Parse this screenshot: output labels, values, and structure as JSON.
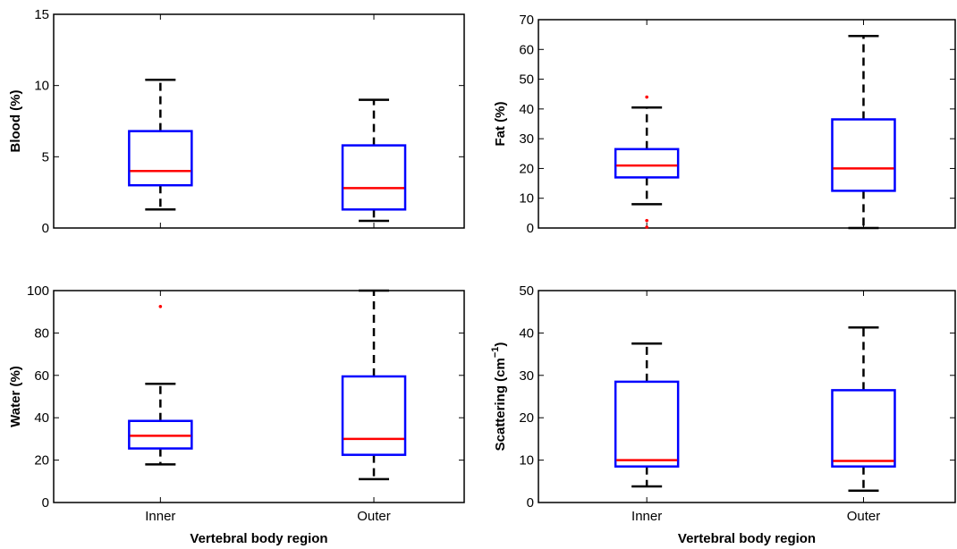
{
  "chart_data": [
    {
      "type": "box",
      "categories": [
        "Inner",
        "Outer"
      ],
      "ylabel": "Blood (%)",
      "xlabel": "",
      "ylim": [
        0,
        15
      ],
      "yticks": [
        0,
        5,
        10,
        15
      ],
      "show_xticklabels": false,
      "boxes": [
        {
          "category": "Inner",
          "whisker_low": 1.3,
          "q1": 3.0,
          "median": 4.0,
          "q3": 6.8,
          "whisker_high": 10.4,
          "outliers": []
        },
        {
          "category": "Outer",
          "whisker_low": 0.5,
          "q1": 1.3,
          "median": 2.8,
          "q3": 5.8,
          "whisker_high": 9.0,
          "outliers": []
        }
      ]
    },
    {
      "type": "box",
      "categories": [
        "Inner",
        "Outer"
      ],
      "ylabel": "Fat (%)",
      "xlabel": "",
      "ylim": [
        0,
        70
      ],
      "yticks": [
        0,
        10,
        20,
        30,
        40,
        50,
        60,
        70
      ],
      "show_xticklabels": false,
      "boxes": [
        {
          "category": "Inner",
          "whisker_low": 8.0,
          "q1": 17.0,
          "median": 21.0,
          "q3": 26.5,
          "whisker_high": 40.5,
          "outliers": [
            44.0,
            2.5,
            0.3
          ]
        },
        {
          "category": "Outer",
          "whisker_low": 0.0,
          "q1": 12.5,
          "median": 20.0,
          "q3": 36.5,
          "whisker_high": 64.5,
          "outliers": []
        }
      ]
    },
    {
      "type": "box",
      "categories": [
        "Inner",
        "Outer"
      ],
      "ylabel": "Water (%)",
      "xlabel": "Vertebral body region",
      "ylim": [
        0,
        100
      ],
      "yticks": [
        0,
        20,
        40,
        60,
        80,
        100
      ],
      "show_xticklabels": true,
      "boxes": [
        {
          "category": "Inner",
          "whisker_low": 18.0,
          "q1": 25.5,
          "median": 31.5,
          "q3": 38.5,
          "whisker_high": 56.0,
          "outliers": [
            92.5
          ]
        },
        {
          "category": "Outer",
          "whisker_low": 11.0,
          "q1": 22.5,
          "median": 30.0,
          "q3": 59.5,
          "whisker_high": 100.0,
          "outliers": []
        }
      ]
    },
    {
      "type": "box",
      "categories": [
        "Inner",
        "Outer"
      ],
      "ylabel": "Scattering (cm",
      "ylabel_sup": "−1",
      "ylabel_close": ")",
      "xlabel": "Vertebral body region",
      "ylim": [
        0,
        50
      ],
      "yticks": [
        0,
        10,
        20,
        30,
        40,
        50
      ],
      "show_xticklabels": true,
      "boxes": [
        {
          "category": "Inner",
          "whisker_low": 3.8,
          "q1": 8.5,
          "median": 10.0,
          "q3": 28.5,
          "whisker_high": 37.5,
          "outliers": []
        },
        {
          "category": "Outer",
          "whisker_low": 2.8,
          "q1": 8.5,
          "median": 9.8,
          "q3": 26.5,
          "whisker_high": 41.3,
          "outliers": []
        }
      ]
    }
  ],
  "colors": {
    "box": "#0000ff",
    "median": "#ff0000",
    "whisker": "#000000",
    "outlier": "#ff0000",
    "axes": "#000000"
  }
}
